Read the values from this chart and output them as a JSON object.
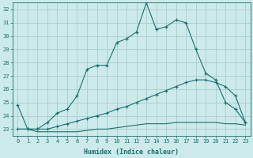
{
  "xlabel": "Humidex (Indice chaleur)",
  "bg_color": "#cceaea",
  "grid_color": "#aacccc",
  "line_color": "#1a6e6e",
  "x_data": [
    0,
    1,
    2,
    3,
    4,
    5,
    6,
    7,
    8,
    9,
    10,
    11,
    12,
    13,
    14,
    15,
    16,
    17,
    18,
    19,
    20,
    21,
    22,
    23
  ],
  "line1_y": [
    24.8,
    23.0,
    23.0,
    23.5,
    24.2,
    24.5,
    25.5,
    27.5,
    27.8,
    27.8,
    29.5,
    29.8,
    30.3,
    32.5,
    30.5,
    30.7,
    31.2,
    31.0,
    29.0,
    27.2,
    26.7,
    25.0,
    24.5,
    23.5
  ],
  "line2_y": [
    23.0,
    23.0,
    23.0,
    23.0,
    23.2,
    23.4,
    23.6,
    23.8,
    24.0,
    24.2,
    24.5,
    24.7,
    25.0,
    25.3,
    25.6,
    25.9,
    26.2,
    26.5,
    26.7,
    26.7,
    26.5,
    26.2,
    25.5,
    23.5
  ],
  "line3_y": [
    23.0,
    23.0,
    22.8,
    22.8,
    22.8,
    22.8,
    22.8,
    22.9,
    23.0,
    23.0,
    23.1,
    23.2,
    23.3,
    23.4,
    23.4,
    23.4,
    23.5,
    23.5,
    23.5,
    23.5,
    23.5,
    23.4,
    23.4,
    23.3
  ],
  "ylim_min": 22.5,
  "ylim_max": 32.5,
  "yticks": [
    23,
    24,
    25,
    26,
    27,
    28,
    29,
    30,
    31,
    32
  ],
  "xlim_min": -0.5,
  "xlim_max": 23.5
}
